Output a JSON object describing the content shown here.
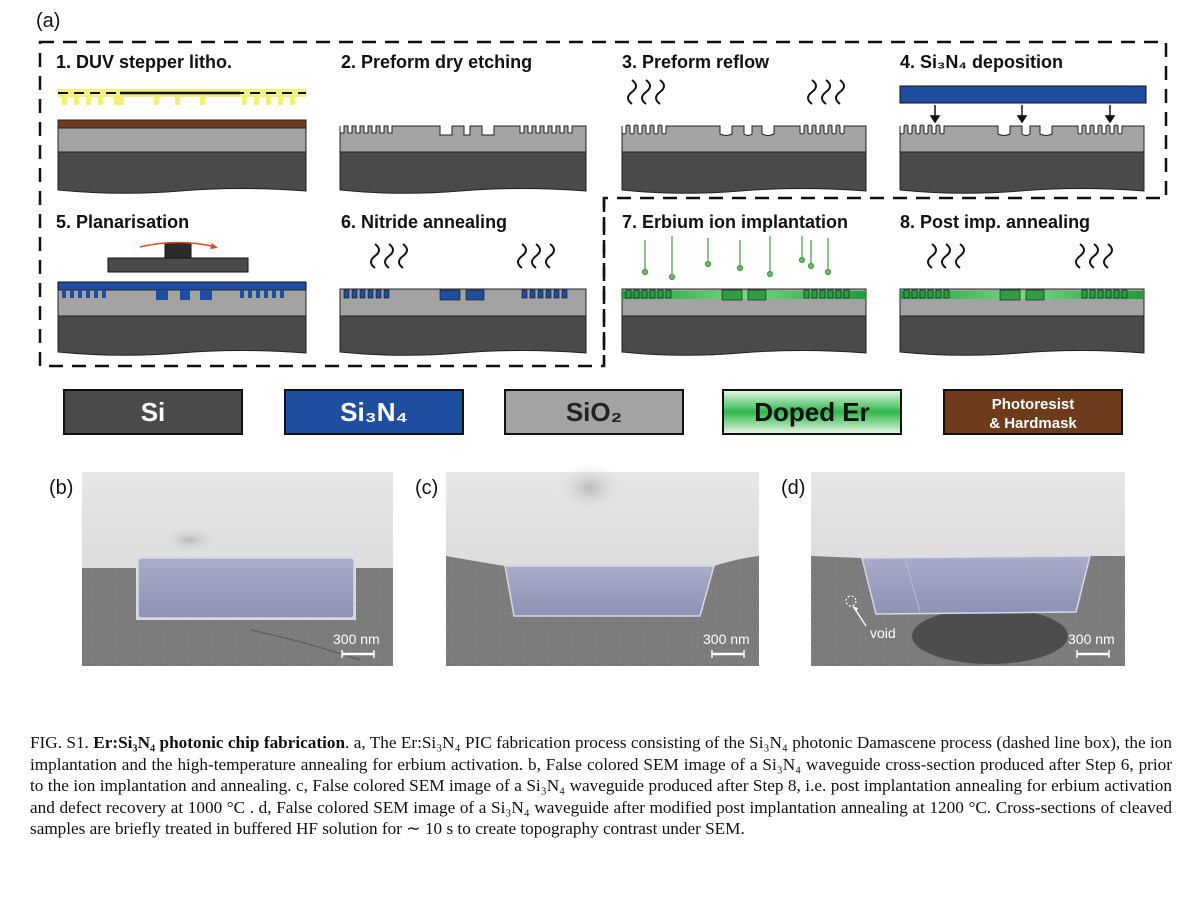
{
  "panel_a": {
    "label": "(a)",
    "steps": [
      {
        "num": "1.",
        "title": "DUV stepper litho."
      },
      {
        "num": "2.",
        "title": "Preform dry etching"
      },
      {
        "num": "3.",
        "title": "Preform reflow"
      },
      {
        "num": "4.",
        "title": "Si₃N₄ deposition"
      },
      {
        "num": "5.",
        "title": "Planarisation"
      },
      {
        "num": "6.",
        "title": "Nitride annealing"
      },
      {
        "num": "7.",
        "title": "Erbium ion implantation"
      },
      {
        "num": "8.",
        "title": "Post imp. annealing"
      }
    ],
    "legend": [
      {
        "label": "Si",
        "color": "#4a4a4a",
        "text_color": "#ffffff"
      },
      {
        "label": "Si₃N₄",
        "color": "#1f4ea0",
        "text_color": "#ffffff"
      },
      {
        "label": "SiO₂",
        "color": "#a3a3a3",
        "text_color": "#222222"
      },
      {
        "label": "Doped Er",
        "color": "#2fb84a",
        "text_color": "#111111"
      },
      {
        "label": "Photoresist",
        "label2": "& Hardmask",
        "color": "#6e3b1c",
        "text_color": "#ffffff"
      }
    ]
  },
  "panel_b": {
    "label": "(b)",
    "scalebar": "300 nm"
  },
  "panel_c": {
    "label": "(c)",
    "scalebar": "300 nm"
  },
  "panel_d": {
    "label": "(d)",
    "scalebar": "300 nm",
    "annotation": "void"
  },
  "caption": {
    "fig": "FIG. S1.",
    "title": "Er:Si₃N₄ photonic chip fabrication",
    "body": ". a, The Er:Si₃N₄ PIC fabrication process consisting of the Si₃N₄ photonic Damascene process (dashed line box), the ion implantation and the high-temperature annealing for erbium activation. b, False colored SEM image of a Si₃N₄ waveguide cross-section produced after Step 6, prior to the ion implantation and annealing. c, False colored SEM image of a Si₃N₄ waveguide produced after Step 8, i.e. post implantation annealing for erbium activation and defect recovery at 1000 °C . d, False colored SEM image of a Si₃N₄ waveguide after modified post implantation annealing at 1200 °C. Cross-sections of cleaved samples are briefly treated in buffered HF solution for ∼ 10 s to create topography contrast under SEM."
  }
}
